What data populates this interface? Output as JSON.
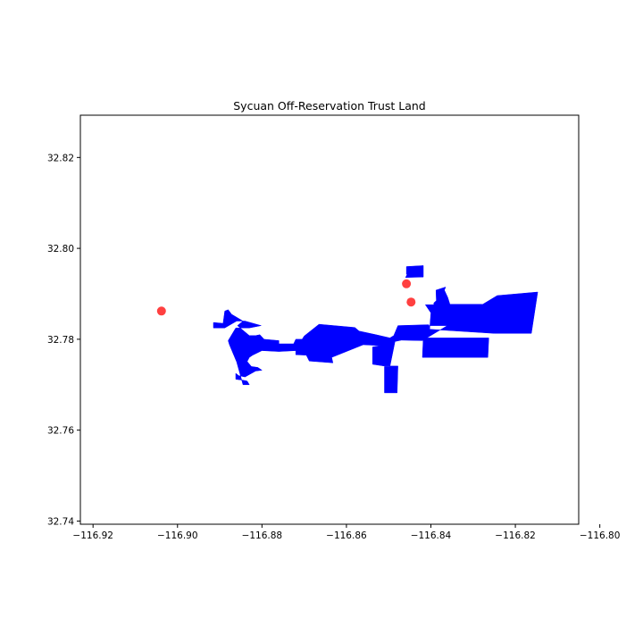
{
  "chart_data": {
    "type": "map",
    "title": "Sycuan Off-Reservation Trust Land",
    "xlabel": "",
    "ylabel": "",
    "xlim": [
      -116.923,
      -116.805
    ],
    "ylim": [
      32.7393,
      32.8293
    ],
    "x_ticks": [
      -116.92,
      -116.9,
      -116.88,
      -116.86,
      -116.84,
      -116.82,
      -116.8
    ],
    "x_tick_labels": [
      "−116.92",
      "−116.90",
      "−116.88",
      "−116.86",
      "−116.84",
      "−116.82",
      "−116.80"
    ],
    "y_ticks": [
      32.74,
      32.76,
      32.78,
      32.8,
      32.82
    ],
    "y_tick_labels": [
      "32.74",
      "32.76",
      "32.78",
      "32.80",
      "32.82"
    ],
    "grid": false,
    "legend": "none",
    "series": [
      {
        "type": "polygons",
        "color": "#0000ff",
        "polygons": [
          [
            [
              -116.8915,
              32.7837
            ],
            [
              -116.8892,
              32.7835
            ],
            [
              -116.8888,
              32.7862
            ],
            [
              -116.888,
              32.7865
            ],
            [
              -116.8872,
              32.7855
            ],
            [
              -116.8845,
              32.784
            ],
            [
              -116.8858,
              32.783
            ],
            [
              -116.883,
              32.7808
            ],
            [
              -116.8815,
              32.7808
            ],
            [
              -116.8805,
              32.781
            ],
            [
              -116.8795,
              32.78
            ],
            [
              -116.876,
              32.7797
            ],
            [
              -116.876,
              32.779
            ],
            [
              -116.8725,
              32.779
            ],
            [
              -116.872,
              32.78
            ],
            [
              -116.8705,
              32.78
            ],
            [
              -116.87,
              32.7807
            ],
            [
              -116.8665,
              32.7833
            ],
            [
              -116.858,
              32.7826
            ],
            [
              -116.857,
              32.7818
            ],
            [
              -116.853,
              32.781
            ],
            [
              -116.8497,
              32.7803
            ],
            [
              -116.8488,
              32.7808
            ],
            [
              -116.8478,
              32.783
            ],
            [
              -116.8405,
              32.7832
            ],
            [
              -116.8405,
              32.783
            ],
            [
              -116.8266,
              32.783
            ],
            [
              -116.8263,
              32.7818
            ],
            [
              -116.8238,
              32.7818
            ],
            [
              -116.8215,
              32.7862
            ],
            [
              -116.8218,
              32.7868
            ],
            [
              -116.8264,
              32.7868
            ],
            [
              -116.8268,
              32.7875
            ],
            [
              -116.828,
              32.7877
            ],
            [
              -116.8355,
              32.7877
            ],
            [
              -116.836,
              32.7892
            ],
            [
              -116.8368,
              32.7908
            ],
            [
              -116.8365,
              32.7915
            ],
            [
              -116.8388,
              32.7908
            ],
            [
              -116.8387,
              32.7885
            ],
            [
              -116.8393,
              32.788
            ],
            [
              -116.8393,
              32.7876
            ],
            [
              -116.8403,
              32.7876
            ],
            [
              -116.8413,
              32.7876
            ],
            [
              -116.84,
              32.7858
            ],
            [
              -116.8403,
              32.7822
            ],
            [
              -116.825,
              32.7813
            ],
            [
              -116.8162,
              32.7813
            ],
            [
              -116.8147,
              32.7904
            ],
            [
              -116.8243,
              32.7896
            ],
            [
              -116.842,
              32.7797
            ],
            [
              -116.847,
              32.7798
            ],
            [
              -116.8485,
              32.7795
            ],
            [
              -116.8497,
              32.774
            ],
            [
              -116.851,
              32.774
            ],
            [
              -116.851,
              32.7682
            ],
            [
              -116.848,
              32.7682
            ],
            [
              -116.8478,
              32.7741
            ],
            [
              -116.851,
              32.7741
            ],
            [
              -116.8538,
              32.7745
            ],
            [
              -116.8538,
              32.7783
            ],
            [
              -116.852,
              32.7786
            ],
            [
              -116.856,
              32.7788
            ],
            [
              -116.8635,
              32.776
            ],
            [
              -116.8632,
              32.7748
            ],
            [
              -116.8688,
              32.7752
            ],
            [
              -116.8695,
              32.7765
            ],
            [
              -116.872,
              32.7766
            ],
            [
              -116.872,
              32.7775
            ],
            [
              -116.876,
              32.7773
            ],
            [
              -116.88,
              32.7775
            ],
            [
              -116.8822,
              32.7765
            ],
            [
              -116.883,
              32.776
            ],
            [
              -116.8835,
              32.7751
            ],
            [
              -116.8825,
              32.774
            ],
            [
              -116.881,
              32.7738
            ],
            [
              -116.88,
              32.7732
            ],
            [
              -116.8815,
              32.773
            ],
            [
              -116.884,
              32.7717
            ],
            [
              -116.8855,
              32.772
            ],
            [
              -116.8862,
              32.7725
            ],
            [
              -116.8862,
              32.7712
            ],
            [
              -116.8845,
              32.771
            ],
            [
              -116.8835,
              32.7708
            ],
            [
              -116.883,
              32.77
            ],
            [
              -116.8845,
              32.77
            ],
            [
              -116.886,
              32.775
            ],
            [
              -116.8877,
              32.7788
            ],
            [
              -116.888,
              32.7797
            ],
            [
              -116.8862,
              32.7825
            ],
            [
              -116.883,
              32.7825
            ],
            [
              -116.8802,
              32.783
            ],
            [
              -116.884,
              32.784
            ],
            [
              -116.886,
              32.784
            ],
            [
              -116.8888,
              32.7825
            ],
            [
              -116.8915,
              32.7825
            ]
          ],
          [
            [
              -116.8458,
              32.7943
            ],
            [
              -116.8458,
              32.796
            ],
            [
              -116.8418,
              32.7962
            ],
            [
              -116.8418,
              32.7937
            ],
            [
              -116.846,
              32.7936
            ],
            [
              -116.8456,
              32.7943
            ]
          ],
          [
            [
              -116.842,
              32.7803
            ],
            [
              -116.8263,
              32.7803
            ],
            [
              -116.8265,
              32.776
            ],
            [
              -116.842,
              32.776
            ],
            [
              -116.8418,
              32.7804
            ]
          ]
        ]
      },
      {
        "type": "points",
        "color": "#ff0000",
        "points": [
          [
            -116.9038,
            32.7862
          ],
          [
            -116.8458,
            32.7922
          ],
          [
            -116.8447,
            32.7882
          ]
        ]
      }
    ]
  }
}
